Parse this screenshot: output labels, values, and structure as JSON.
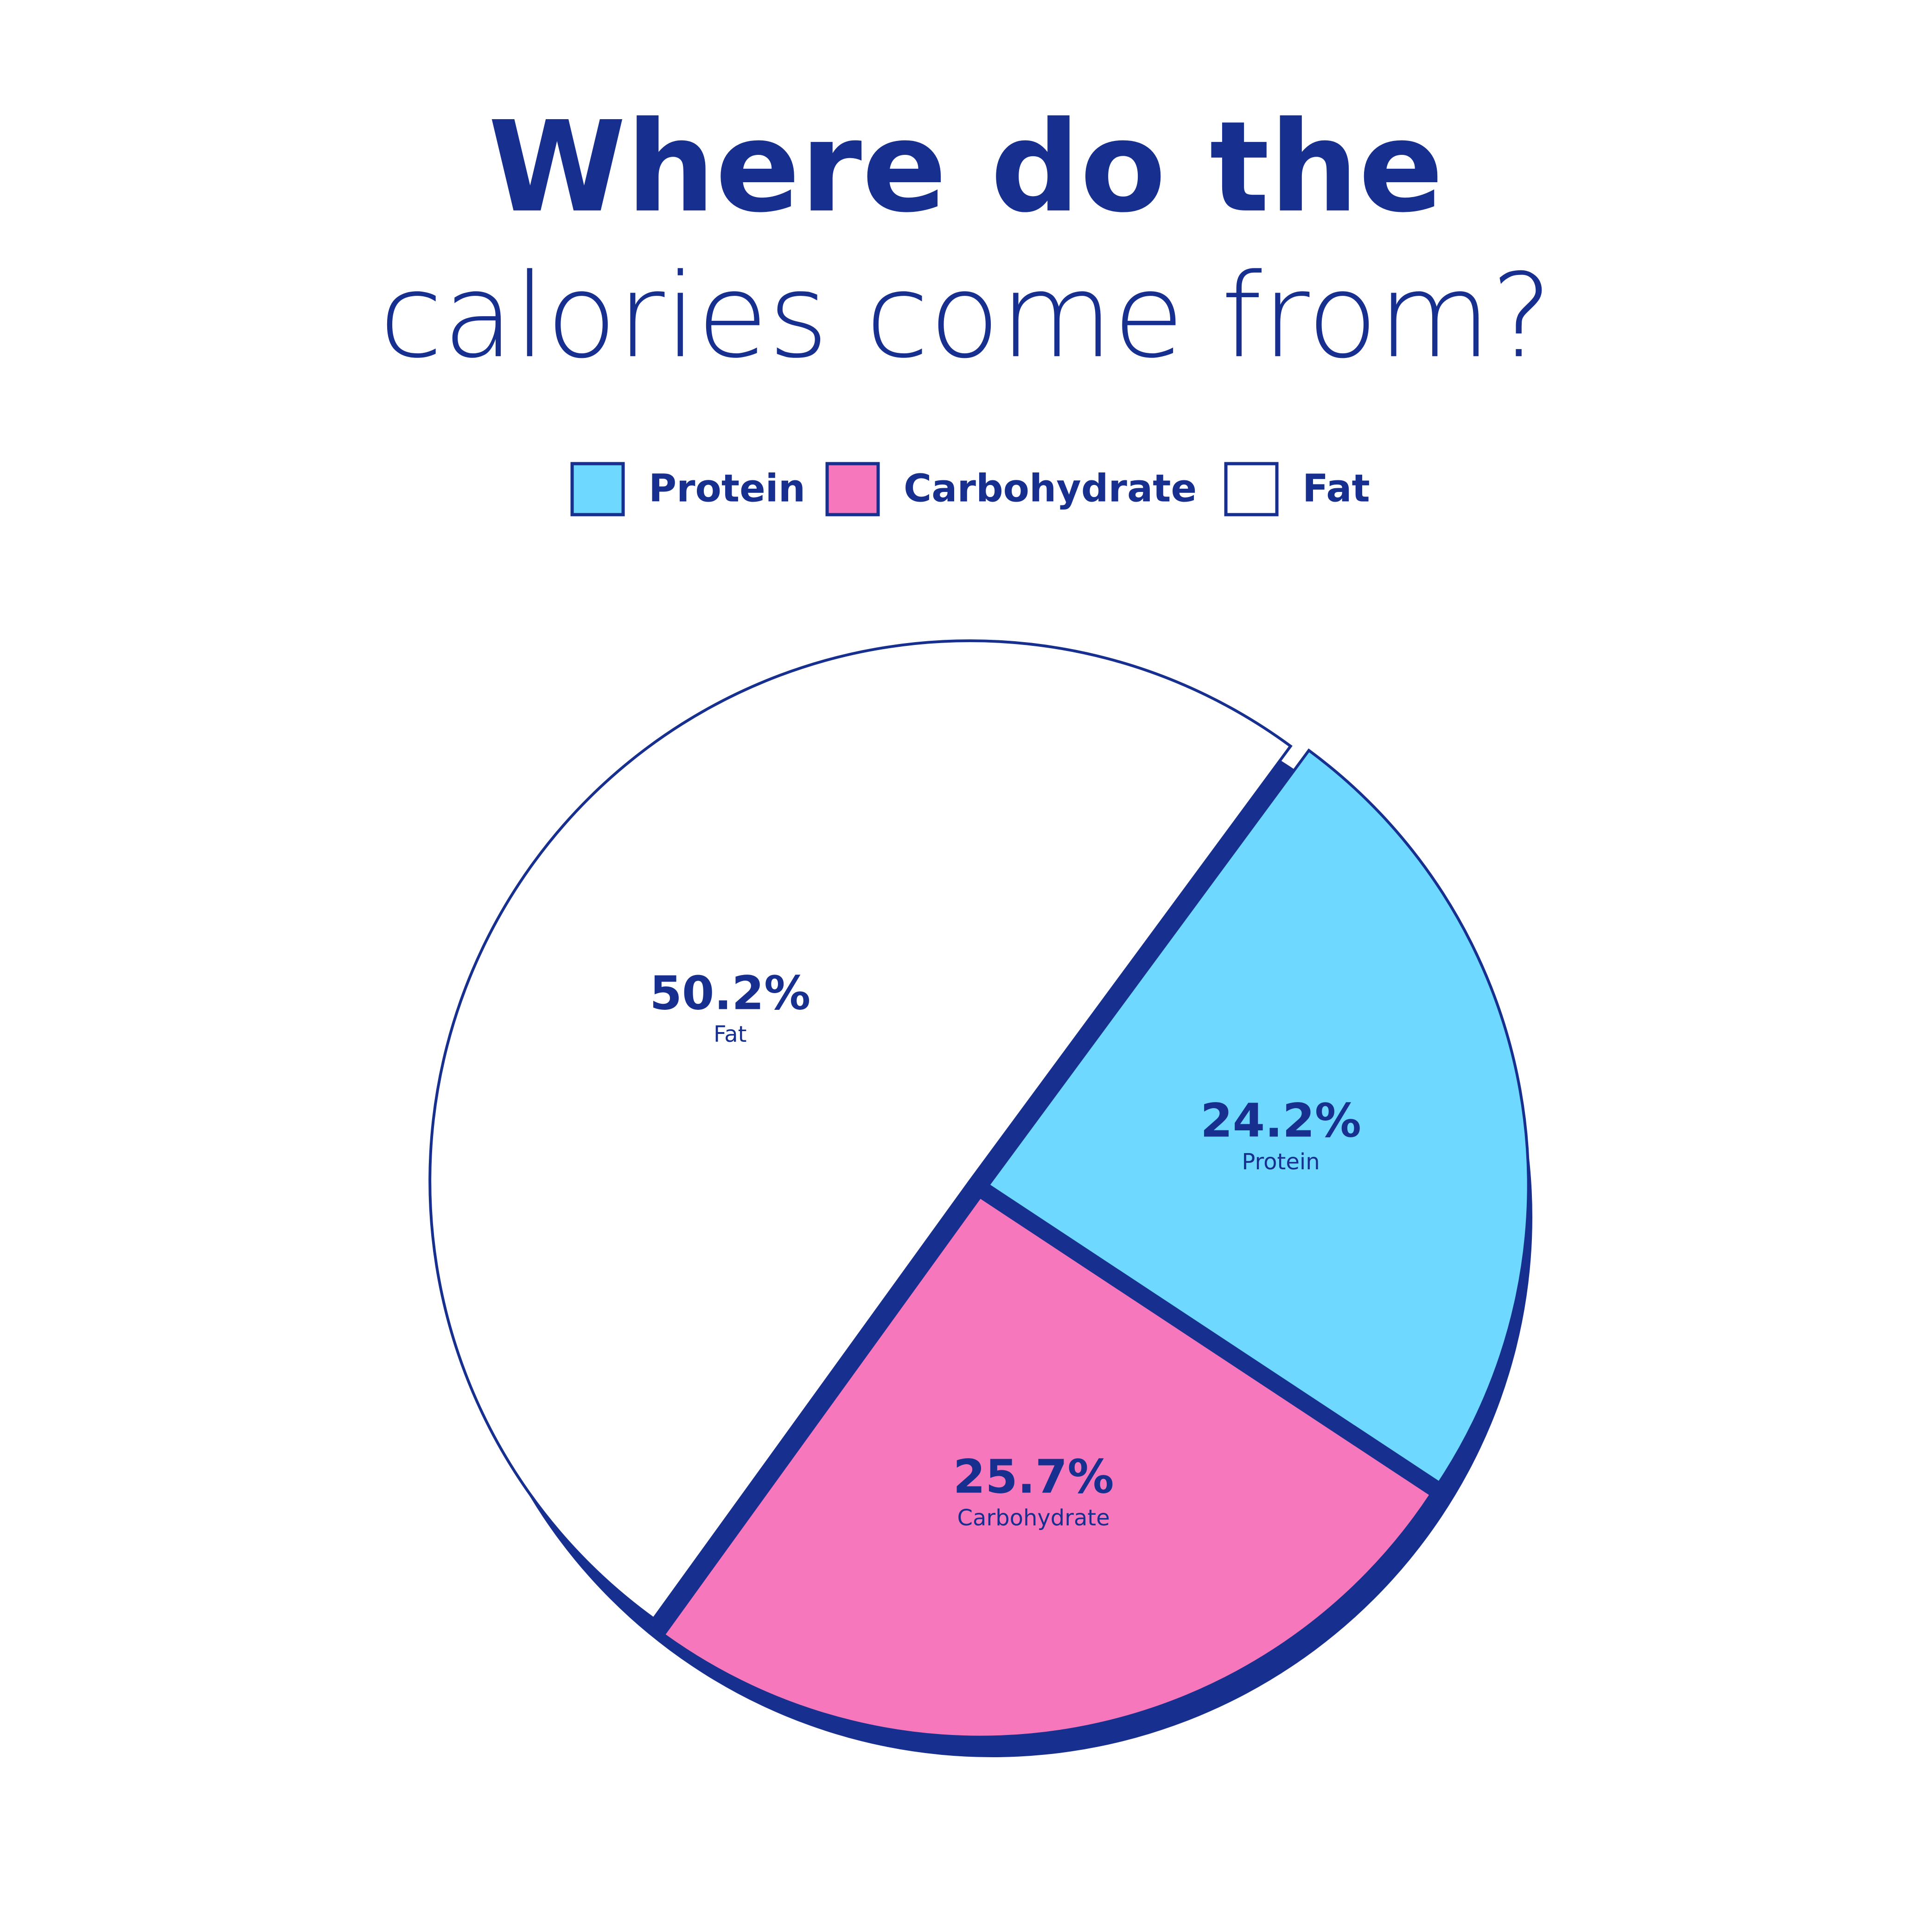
{
  "chart_data": {
    "type": "pie",
    "title_lines": [
      "Where do the",
      "calories come from?"
    ],
    "categories": [
      "Protein",
      "Carbohydrate",
      "Fat"
    ],
    "values": [
      24.2,
      25.7,
      50.2
    ],
    "value_labels": [
      "24.2%",
      "25.7%",
      "50.2%"
    ],
    "colors": [
      "#6fd8fe",
      "#f777bd",
      "#ffffff"
    ],
    "legend": "top"
  }
}
